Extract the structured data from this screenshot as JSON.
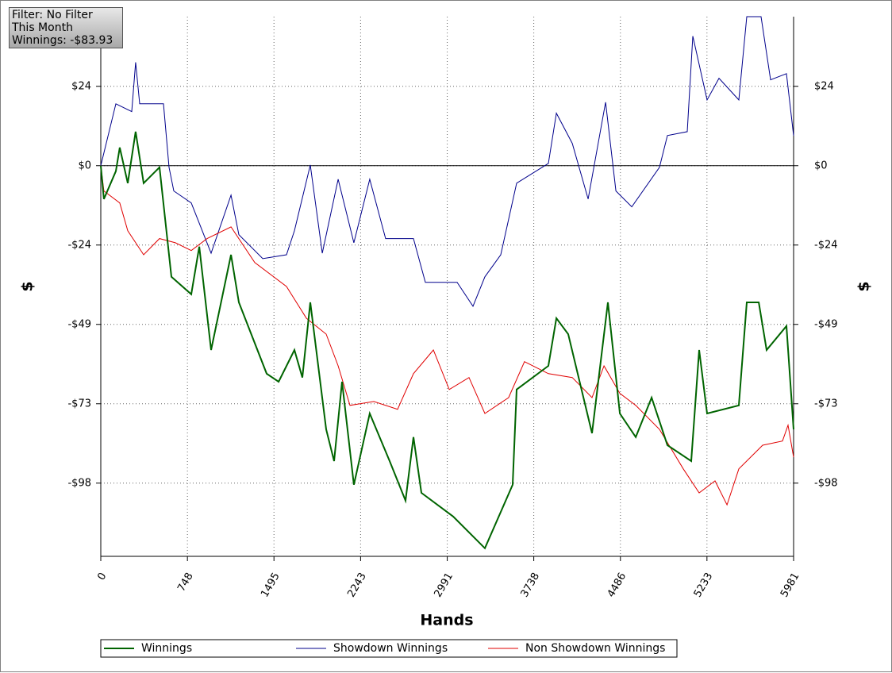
{
  "info_box": {
    "lines": [
      "Filter: No Filter",
      "This Month",
      "Winnings: -$83.93"
    ]
  },
  "chart_data": {
    "type": "line",
    "x_label": "Hands",
    "y_label": "$",
    "xlim": [
      0,
      5981
    ],
    "xticks": [
      0,
      748,
      1495,
      2243,
      2991,
      3738,
      4486,
      5233,
      5981
    ],
    "ylim": [
      -120.6,
      46
    ],
    "yticks": [
      {
        "value": 24.5,
        "label": "$24"
      },
      {
        "value": 0,
        "label": "$0"
      },
      {
        "value": -24.5,
        "label": "-$24"
      },
      {
        "value": -49,
        "label": "-$49"
      },
      {
        "value": -73.5,
        "label": "-$73"
      },
      {
        "value": -98,
        "label": "-$98"
      }
    ],
    "grid": true,
    "zero_line": true,
    "legend": "bottom",
    "series": [
      {
        "name": "Winnings",
        "color": "#006400",
        "x": [
          0,
          27,
          130,
          164,
          233,
          301,
          370,
          507,
          610,
          781,
          850,
          952,
          1124,
          1192,
          1432,
          1535,
          1672,
          1740,
          1809,
          1946,
          2014,
          2083,
          2185,
          2322,
          2494,
          2631,
          2699,
          2768,
          3042,
          3316,
          3556,
          3590,
          3864,
          3933,
          4035,
          4241,
          4378,
          4481,
          4618,
          4755,
          4892,
          5097,
          5166,
          5234,
          5508,
          5577,
          5680,
          5748,
          5919,
          5981
        ],
        "values": [
          0,
          -10.3,
          -1.7,
          5.6,
          -5.4,
          10.5,
          -5.4,
          -0.5,
          -34.3,
          -39.7,
          -25,
          -56.9,
          -27.5,
          -42.2,
          -64.2,
          -66.7,
          -56.9,
          -65.4,
          -42.2,
          -81.4,
          -91.2,
          -66.7,
          -98.5,
          -76.5,
          -91.2,
          -103.4,
          -83.8,
          -101,
          -108.3,
          -118.1,
          -98.5,
          -69.1,
          -61.8,
          -47.1,
          -52,
          -82.6,
          -42.2,
          -76.5,
          -83.8,
          -71.6,
          -86.3,
          -91.2,
          -56.9,
          -76.5,
          -74,
          -42.2,
          -42.2,
          -56.9,
          -49.5,
          -81.4
        ]
      },
      {
        "name": "Showdown Winnings",
        "color": "#00008b",
        "x": [
          0,
          130,
          267,
          301,
          336,
          541,
          589,
          630,
          781,
          952,
          1124,
          1192,
          1398,
          1603,
          1672,
          1809,
          1912,
          2049,
          2185,
          2322,
          2459,
          2699,
          2802,
          3076,
          3213,
          3316,
          3453,
          3590,
          3864,
          3933,
          4070,
          4207,
          4358,
          4447,
          4584,
          4823,
          4892,
          5063,
          5111,
          5234,
          5337,
          5508,
          5577,
          5700,
          5782,
          5919,
          5981
        ],
        "values": [
          0,
          19.1,
          16.7,
          31.9,
          19.1,
          19.1,
          -0.5,
          -7.8,
          -11.5,
          -27,
          -9.1,
          -21.3,
          -28.7,
          -27.5,
          -20.1,
          0.2,
          -27,
          -4.2,
          -23.8,
          -4.2,
          -22.5,
          -22.5,
          -36,
          -36,
          -43.4,
          -34.3,
          -27.5,
          -5.4,
          0.7,
          16.2,
          6.9,
          -10.3,
          19.6,
          -7.8,
          -12.7,
          -0.5,
          9.3,
          10.5,
          40,
          20.3,
          27,
          20.3,
          46,
          46,
          26.5,
          28.4,
          9.3
        ]
      },
      {
        "name": "Non Showdown Winnings",
        "color": "#e00000",
        "x": [
          0,
          27,
          164,
          233,
          370,
          507,
          644,
          781,
          918,
          1124,
          1329,
          1603,
          1775,
          1946,
          2049,
          2151,
          2357,
          2562,
          2699,
          2871,
          3008,
          3179,
          3316,
          3521,
          3658,
          3864,
          4070,
          4241,
          4344,
          4481,
          4618,
          4823,
          5029,
          5166,
          5303,
          5406,
          5508,
          5714,
          5885,
          5933,
          5981
        ],
        "values": [
          0,
          -7.8,
          -11.5,
          -20.1,
          -27.5,
          -22.5,
          -23.8,
          -26.2,
          -22.5,
          -18.9,
          -29.9,
          -37.3,
          -47.1,
          -52,
          -61.8,
          -74,
          -72.8,
          -75.2,
          -64.2,
          -56.9,
          -69.1,
          -65.4,
          -76.5,
          -71.6,
          -60.5,
          -64.2,
          -65.4,
          -71.6,
          -61.8,
          -70.3,
          -74,
          -81.4,
          -93.6,
          -101,
          -97.3,
          -104.7,
          -93.6,
          -86.3,
          -85,
          -80.1,
          -90
        ]
      }
    ]
  }
}
